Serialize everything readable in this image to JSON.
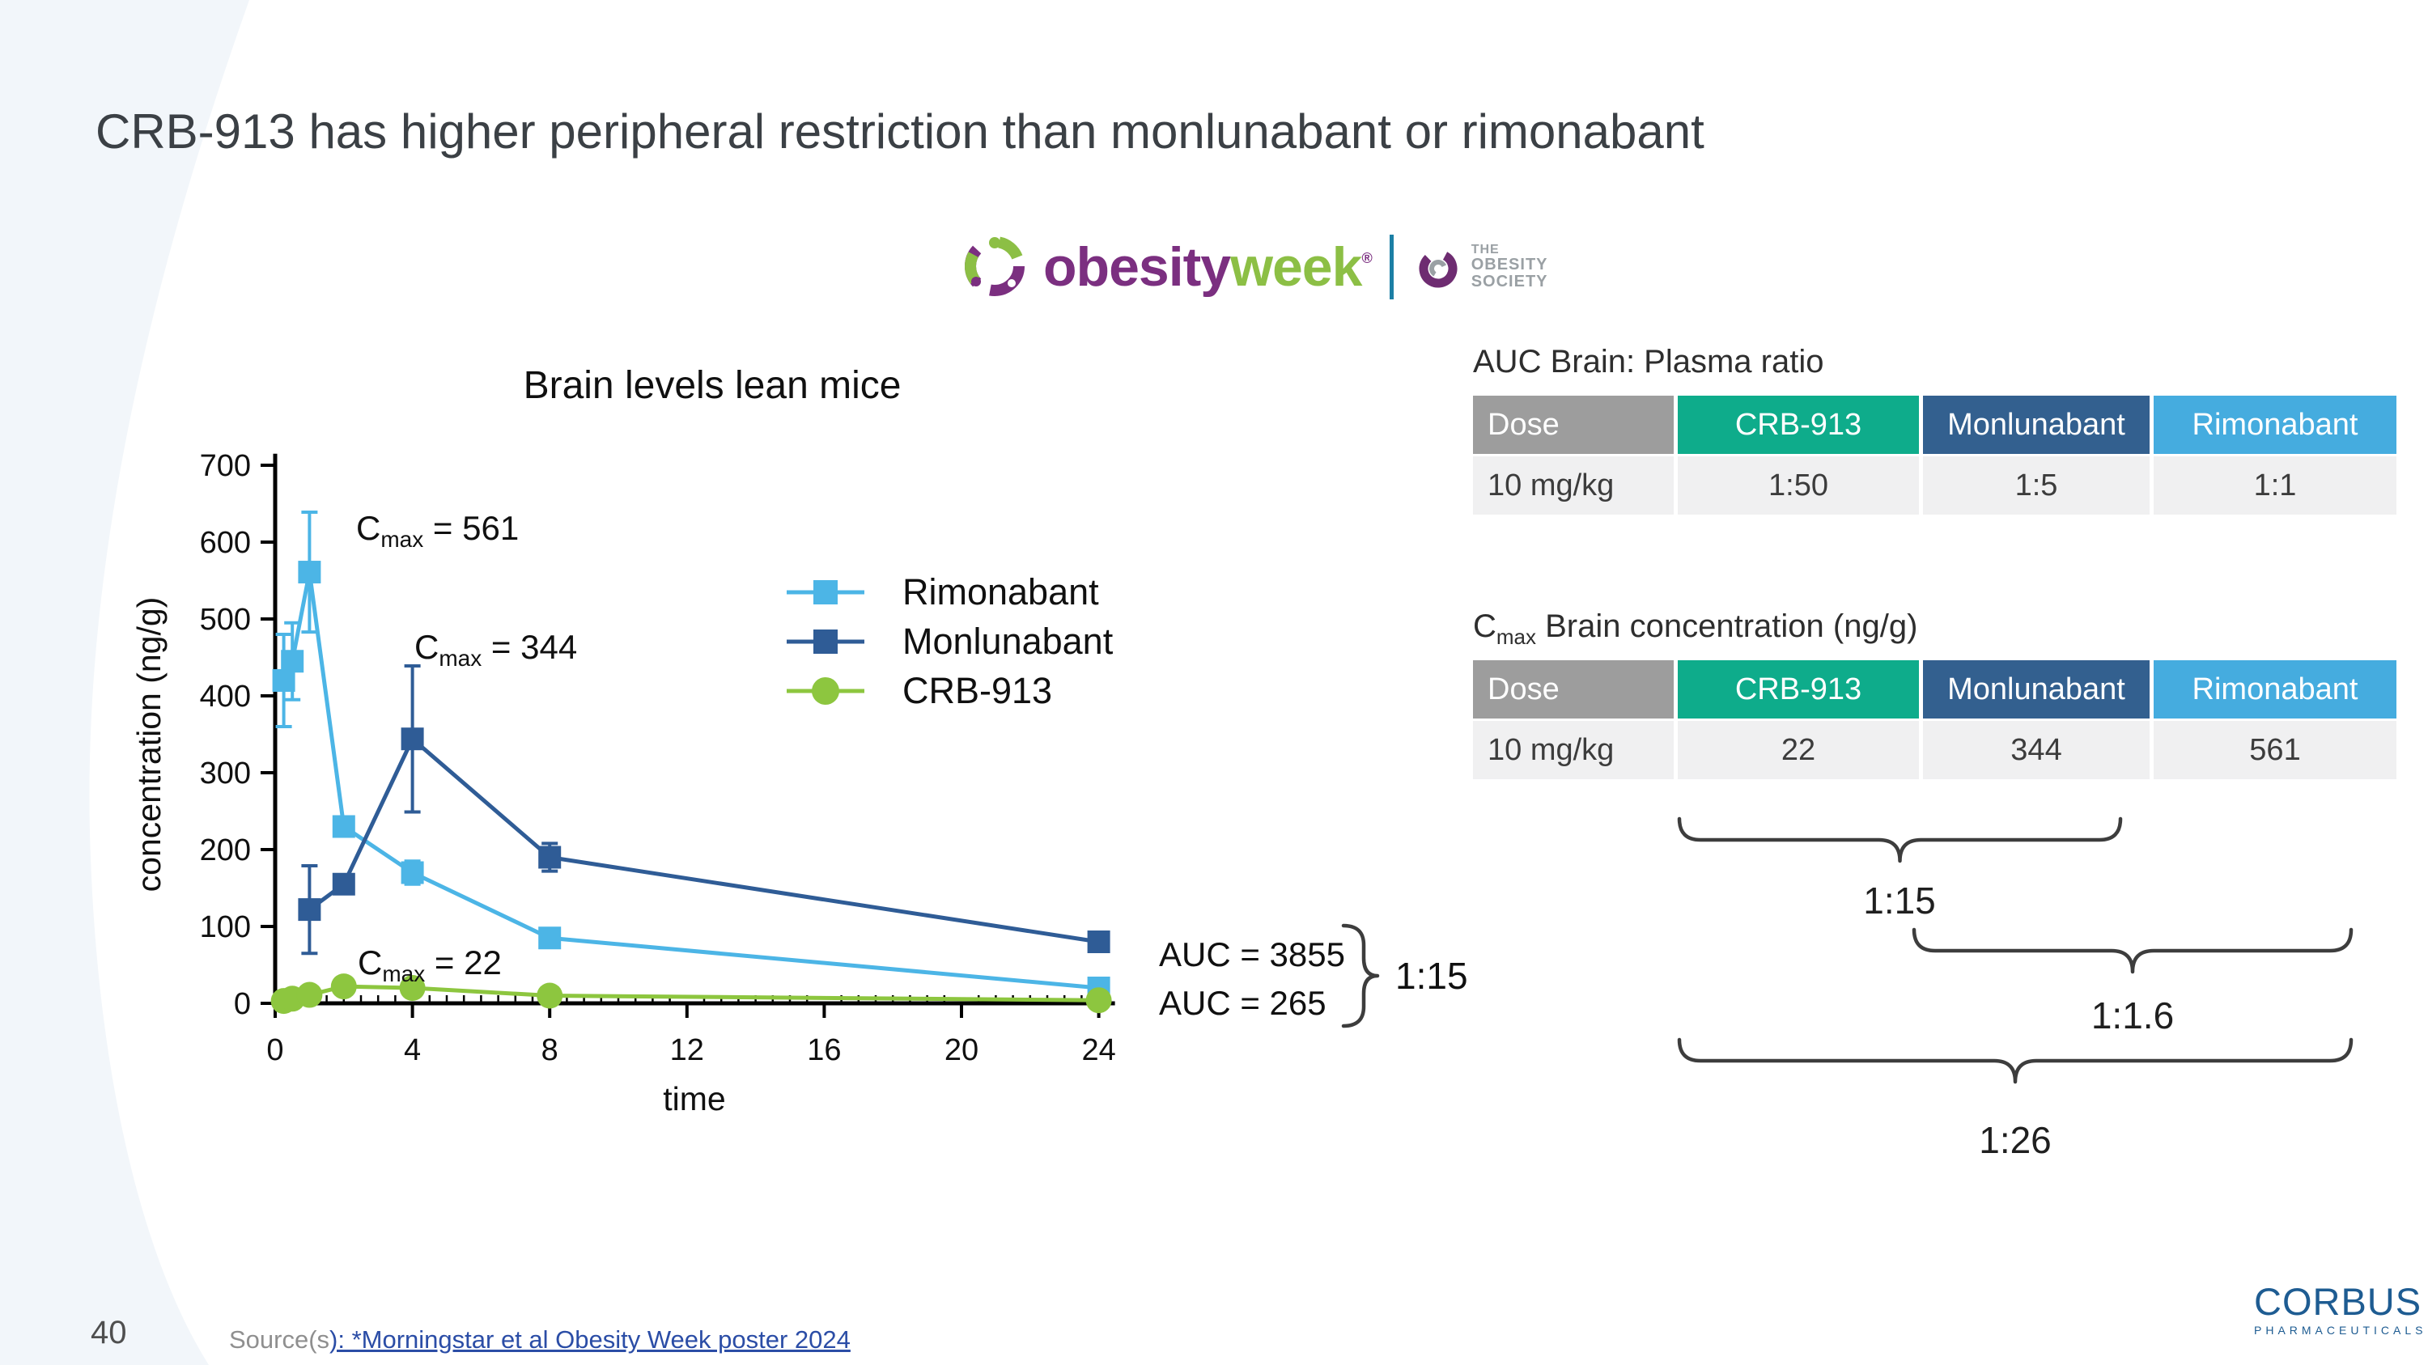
{
  "slide": {
    "title": "CRB-913 has higher peripheral restriction than monlunabant or rimonabant",
    "page_number": "40",
    "source_prefix": "Source(s",
    "source_link": "): *Morningstar et al Obesity Week poster 2024"
  },
  "logos": {
    "obesityweek": {
      "brand_a": "obesity",
      "brand_b": "week",
      "registered": "®",
      "society": [
        "THE",
        "OBESITY",
        "SOCIETY"
      ]
    },
    "corbus": {
      "name": "CORBUS",
      "subtitle": "PHARMACEUTICALS"
    }
  },
  "chart_data": {
    "type": "line",
    "title": "Brain levels lean mice",
    "xlabel": "time",
    "ylabel": "concentration (ng/g)",
    "xlim": [
      0,
      24
    ],
    "ylim": [
      0,
      700
    ],
    "xticks": [
      0,
      4,
      8,
      12,
      16,
      20,
      24
    ],
    "yticks": [
      0,
      100,
      200,
      300,
      400,
      500,
      600,
      700
    ],
    "grid": false,
    "legend_position": "center-right",
    "series": [
      {
        "name": "Rimonabant",
        "color": "#4cb5e6",
        "marker": "square",
        "x": [
          0.25,
          0.5,
          1,
          2,
          4,
          8,
          24
        ],
        "y": [
          420,
          445,
          561,
          230,
          170,
          85,
          20
        ],
        "err": [
          60,
          50,
          78,
          10,
          15,
          8,
          5
        ]
      },
      {
        "name": "Monlunabant",
        "color": "#2f5c96",
        "marker": "square",
        "x": [
          1,
          2,
          4,
          8,
          24
        ],
        "y": [
          122,
          155,
          344,
          190,
          80
        ],
        "err": [
          57,
          10,
          95,
          18,
          6
        ]
      },
      {
        "name": "CRB-913",
        "color": "#8dc63f",
        "marker": "circle",
        "x": [
          0.25,
          0.5,
          1,
          2,
          4,
          8,
          24
        ],
        "y": [
          3,
          6,
          11,
          22,
          20,
          10,
          4
        ],
        "err": [
          0,
          0,
          0,
          0,
          0,
          0,
          0
        ]
      }
    ],
    "annotations": [
      {
        "main": "C",
        "sub": "max",
        "rest": " = 561"
      },
      {
        "main": "C",
        "sub": "max",
        "rest": " = 344"
      },
      {
        "main": "C",
        "sub": "max",
        "rest": " = 22"
      }
    ],
    "auc_labels": [
      "AUC = 3855",
      "AUC = 265"
    ],
    "auc_ratio": "1:15"
  },
  "right_panel": {
    "col_colors": [
      "#9d9d9d",
      "#0eac8b",
      "#33608f",
      "#45acdf"
    ],
    "auc_table": {
      "title": "AUC Brain: Plasma ratio",
      "columns": [
        "Dose",
        "CRB-913",
        "Monlunabant",
        "Rimonabant"
      ],
      "rows": [
        [
          "10 mg/kg",
          "1:50",
          "1:5",
          "1:1"
        ]
      ]
    },
    "cmax_table": {
      "title_main": "C",
      "title_sub": "max",
      "title_rest": " Brain concentration (ng/g)",
      "columns": [
        "Dose",
        "CRB-913",
        "Monlunabant",
        "Rimonabant"
      ],
      "rows": [
        [
          "10 mg/kg",
          "22",
          "344",
          "561"
        ]
      ]
    },
    "braces": [
      {
        "label": "1:15"
      },
      {
        "label": "1:1.6"
      },
      {
        "label": "1:26"
      }
    ]
  }
}
